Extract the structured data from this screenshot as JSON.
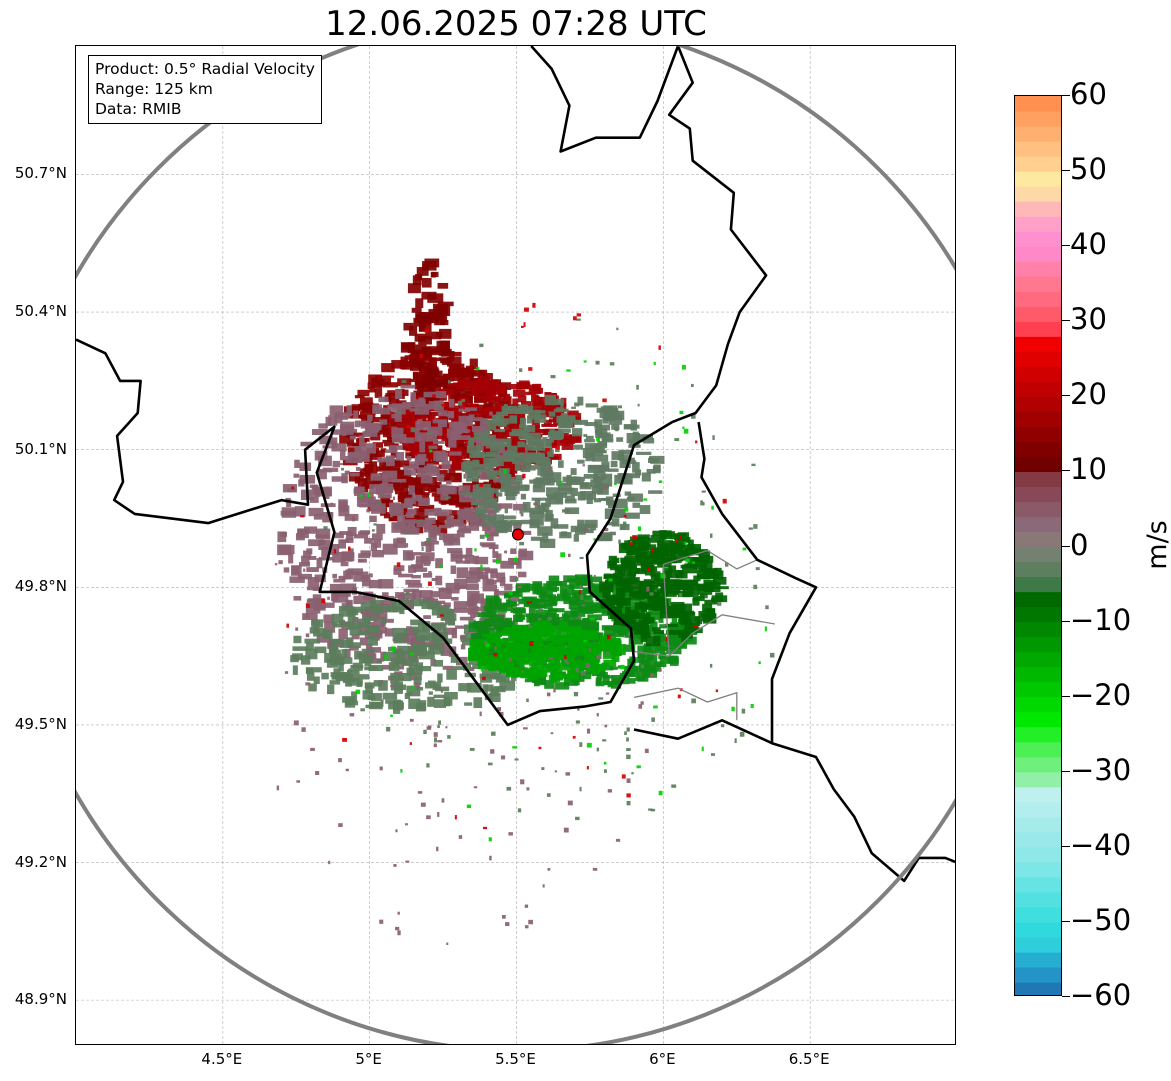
{
  "title": "12.06.2025 07:28 UTC",
  "info": {
    "product": "Product: 0.5° Radial Velocity",
    "range": "Range: 125 km",
    "data": "Data: RMIB"
  },
  "map": {
    "lon_min": 4.0,
    "lon_max": 7.0,
    "lat_min": 48.8,
    "lat_max": 50.98,
    "radar_site": {
      "lon": 5.505,
      "lat": 49.915
    },
    "range_ring": {
      "lon": 5.505,
      "lat": 49.915,
      "radius_lon_deg": 1.74,
      "radius_lat_deg": 1.125,
      "color": "#808080"
    },
    "lat_ticks": [
      {
        "value": 50.7,
        "label": "50.7°N"
      },
      {
        "value": 50.4,
        "label": "50.4°N"
      },
      {
        "value": 50.1,
        "label": "50.1°N"
      },
      {
        "value": 49.8,
        "label": "49.8°N"
      },
      {
        "value": 49.5,
        "label": "49.5°N"
      },
      {
        "value": 49.2,
        "label": "49.2°N"
      },
      {
        "value": 48.9,
        "label": "48.9°N"
      }
    ],
    "lon_ticks": [
      {
        "value": 4.5,
        "label": "4.5°E"
      },
      {
        "value": 5.0,
        "label": "5°E"
      },
      {
        "value": 5.5,
        "label": "5.5°E"
      },
      {
        "value": 6.0,
        "label": "6°E"
      },
      {
        "value": 6.5,
        "label": "6.5°E"
      }
    ],
    "borders": [
      [
        [
          4.0,
          50.34
        ],
        [
          4.1,
          50.31
        ],
        [
          4.15,
          50.25
        ],
        [
          4.22,
          50.25
        ],
        [
          4.21,
          50.18
        ],
        [
          4.14,
          50.13
        ],
        [
          4.16,
          50.03
        ],
        [
          4.13,
          49.99
        ],
        [
          4.2,
          49.96
        ],
        [
          4.45,
          49.94
        ],
        [
          4.55,
          49.96
        ],
        [
          4.7,
          49.99
        ],
        [
          4.79,
          49.98
        ],
        [
          4.78,
          50.1
        ],
        [
          4.88,
          50.15
        ],
        [
          4.82,
          50.05
        ],
        [
          4.88,
          49.92
        ],
        [
          4.83,
          49.79
        ],
        [
          4.95,
          49.79
        ],
        [
          5.1,
          49.77
        ],
        [
          5.25,
          49.69
        ],
        [
          5.47,
          49.5
        ],
        [
          5.58,
          49.53
        ],
        [
          5.73,
          49.54
        ],
        [
          5.82,
          49.55
        ],
        [
          5.9,
          49.64
        ],
        [
          5.89,
          49.71
        ],
        [
          5.75,
          49.79
        ],
        [
          5.74,
          49.87
        ],
        [
          5.82,
          49.95
        ],
        [
          5.9,
          50.11
        ],
        [
          6.03,
          50.16
        ],
        [
          6.11,
          50.18
        ],
        [
          6.18,
          50.24
        ],
        [
          6.22,
          50.33
        ],
        [
          6.26,
          50.4
        ],
        [
          6.35,
          50.48
        ],
        [
          6.23,
          50.58
        ],
        [
          6.24,
          50.66
        ],
        [
          6.1,
          50.73
        ],
        [
          6.09,
          50.8
        ],
        [
          6.02,
          50.83
        ],
        [
          6.1,
          50.9
        ],
        [
          6.05,
          50.98
        ]
      ],
      [
        [
          6.12,
          50.16
        ],
        [
          6.14,
          50.08
        ],
        [
          6.13,
          50.04
        ],
        [
          6.2,
          49.96
        ],
        [
          6.32,
          49.86
        ],
        [
          6.45,
          49.82
        ],
        [
          6.52,
          49.8
        ],
        [
          6.43,
          49.7
        ],
        [
          6.37,
          49.6
        ],
        [
          6.37,
          49.46
        ],
        [
          6.2,
          49.51
        ],
        [
          6.05,
          49.47
        ],
        [
          5.9,
          49.49
        ]
      ],
      [
        [
          6.37,
          49.46
        ],
        [
          6.52,
          49.43
        ],
        [
          6.58,
          49.36
        ],
        [
          6.65,
          49.3
        ],
        [
          6.71,
          49.22
        ],
        [
          6.82,
          49.16
        ],
        [
          6.87,
          49.21
        ],
        [
          6.96,
          49.21
        ],
        [
          7.0,
          49.2
        ]
      ],
      [
        [
          5.55,
          50.98
        ],
        [
          5.62,
          50.93
        ],
        [
          5.68,
          50.85
        ],
        [
          5.65,
          50.75
        ],
        [
          5.77,
          50.78
        ],
        [
          5.92,
          50.78
        ],
        [
          5.98,
          50.86
        ],
        [
          6.05,
          50.98
        ]
      ]
    ],
    "sub_borders": [
      [
        [
          6.0,
          49.85
        ],
        [
          6.15,
          49.88
        ],
        [
          6.25,
          49.84
        ],
        [
          6.32,
          49.86
        ]
      ],
      [
        [
          5.9,
          49.66
        ],
        [
          6.02,
          49.65
        ],
        [
          6.1,
          49.7
        ],
        [
          6.2,
          49.74
        ],
        [
          6.38,
          49.72
        ]
      ],
      [
        [
          5.9,
          49.56
        ],
        [
          6.05,
          49.58
        ],
        [
          6.15,
          49.55
        ],
        [
          6.25,
          49.57
        ],
        [
          6.25,
          49.51
        ]
      ],
      [
        [
          6.02,
          49.65
        ],
        [
          6.01,
          49.75
        ],
        [
          6.0,
          49.85
        ]
      ]
    ],
    "echo_regions": [
      {
        "kind": "receding_strong",
        "color": "#8b0000",
        "cx": 5.22,
        "cy": 50.12,
        "rx": 0.3,
        "ry": 0.2,
        "count": 520
      },
      {
        "kind": "receding",
        "color": "#a40005",
        "cx": 5.4,
        "cy": 50.15,
        "rx": 0.32,
        "ry": 0.1,
        "count": 280
      },
      {
        "kind": "receding_spike",
        "color": "#800000",
        "cx": 5.2,
        "cy": 50.35,
        "rx": 0.07,
        "ry": 0.16,
        "count": 80
      },
      {
        "kind": "near_zero_pos",
        "color": "#8a6070",
        "cx": 5.12,
        "cy": 49.92,
        "rx": 0.42,
        "ry": 0.32,
        "count": 600
      },
      {
        "kind": "near_zero_neg",
        "color": "#607a62",
        "cx": 5.65,
        "cy": 50.05,
        "rx": 0.34,
        "ry": 0.16,
        "count": 320
      },
      {
        "kind": "near_zero_neg",
        "color": "#5b7d5b",
        "cx": 5.15,
        "cy": 49.65,
        "rx": 0.42,
        "ry": 0.12,
        "count": 240
      },
      {
        "kind": "approaching",
        "color": "#0d8a14",
        "cx": 5.72,
        "cy": 49.7,
        "rx": 0.38,
        "ry": 0.12,
        "count": 500
      },
      {
        "kind": "approaching_strong",
        "color": "#006400",
        "cx": 6.0,
        "cy": 49.8,
        "rx": 0.2,
        "ry": 0.12,
        "count": 280
      },
      {
        "kind": "approaching_dense",
        "color": "#00a400",
        "cx": 5.6,
        "cy": 49.66,
        "rx": 0.25,
        "ry": 0.06,
        "count": 220
      },
      {
        "kind": "scatter",
        "color": "#8a6070",
        "cx": 5.3,
        "cy": 49.6,
        "rx": 0.7,
        "ry": 0.6,
        "count": 150
      },
      {
        "kind": "scatter",
        "color": "#5b7d5b",
        "cx": 5.6,
        "cy": 49.8,
        "rx": 0.8,
        "ry": 0.6,
        "count": 150
      },
      {
        "kind": "scatter",
        "color": "#d40000",
        "cx": 5.5,
        "cy": 49.85,
        "rx": 0.8,
        "ry": 0.6,
        "count": 60
      },
      {
        "kind": "scatter",
        "color": "#00d000",
        "cx": 5.6,
        "cy": 49.8,
        "rx": 0.8,
        "ry": 0.6,
        "count": 60
      }
    ],
    "colors": {
      "border": "#000000",
      "sub_border": "#808080",
      "grid": "#b0b0b0",
      "radar_marker": "#e60000"
    }
  },
  "colorbar": {
    "unit": "m/s",
    "min": -60,
    "max": 60,
    "ticks": [
      {
        "value": 60,
        "label": "60"
      },
      {
        "value": 50,
        "label": "50"
      },
      {
        "value": 40,
        "label": "40"
      },
      {
        "value": 30,
        "label": "30"
      },
      {
        "value": 20,
        "label": "20"
      },
      {
        "value": 10,
        "label": "10"
      },
      {
        "value": 0,
        "label": "0"
      },
      {
        "value": -10,
        "label": "−10"
      },
      {
        "value": -20,
        "label": "−20"
      },
      {
        "value": -30,
        "label": "−30"
      },
      {
        "value": -40,
        "label": "−40"
      },
      {
        "value": -50,
        "label": "−50"
      },
      {
        "value": -60,
        "label": "−60"
      }
    ],
    "bands": [
      {
        "from": -60,
        "to": -58,
        "color": "#1f77b4"
      },
      {
        "from": -58,
        "to": -56,
        "color": "#2494c8"
      },
      {
        "from": -56,
        "to": -54,
        "color": "#25aed2"
      },
      {
        "from": -54,
        "to": -52,
        "color": "#2ecfdb"
      },
      {
        "from": -52,
        "to": -50,
        "color": "#30d9de"
      },
      {
        "from": -50,
        "to": -48,
        "color": "#3fdedf"
      },
      {
        "from": -48,
        "to": -46,
        "color": "#52e0e0"
      },
      {
        "from": -46,
        "to": -44,
        "color": "#66e3e3"
      },
      {
        "from": -44,
        "to": -42,
        "color": "#7de6e6"
      },
      {
        "from": -42,
        "to": -40,
        "color": "#8ee8e8"
      },
      {
        "from": -40,
        "to": -38,
        "color": "#99e9ea"
      },
      {
        "from": -38,
        "to": -36,
        "color": "#a6ebeb"
      },
      {
        "from": -36,
        "to": -34,
        "color": "#b2eeee"
      },
      {
        "from": -34,
        "to": -32,
        "color": "#bff0f0"
      },
      {
        "from": -32,
        "to": -30,
        "color": "#90f0a8"
      },
      {
        "from": -30,
        "to": -28,
        "color": "#6ff07c"
      },
      {
        "from": -28,
        "to": -26,
        "color": "#4cf054"
      },
      {
        "from": -26,
        "to": -24,
        "color": "#22f026"
      },
      {
        "from": -24,
        "to": -22,
        "color": "#00e800"
      },
      {
        "from": -22,
        "to": -20,
        "color": "#00d800"
      },
      {
        "from": -20,
        "to": -18,
        "color": "#00c800"
      },
      {
        "from": -18,
        "to": -16,
        "color": "#00b800"
      },
      {
        "from": -16,
        "to": -14,
        "color": "#00a800"
      },
      {
        "from": -14,
        "to": -12,
        "color": "#009800"
      },
      {
        "from": -12,
        "to": -10,
        "color": "#008800"
      },
      {
        "from": -10,
        "to": -8,
        "color": "#007800"
      },
      {
        "from": -8,
        "to": -6,
        "color": "#006a00"
      },
      {
        "from": -6,
        "to": -4,
        "color": "#3e7a48"
      },
      {
        "from": -4,
        "to": -2,
        "color": "#5e7e60"
      },
      {
        "from": -2,
        "to": 0,
        "color": "#748070"
      },
      {
        "from": 0,
        "to": 2,
        "color": "#8a7878"
      },
      {
        "from": 2,
        "to": 4,
        "color": "#8a6a78"
      },
      {
        "from": 4,
        "to": 6,
        "color": "#8a5a68"
      },
      {
        "from": 6,
        "to": 8,
        "color": "#884858"
      },
      {
        "from": 8,
        "to": 10,
        "color": "#843a44"
      },
      {
        "from": 10,
        "to": 12,
        "color": "#700000"
      },
      {
        "from": 12,
        "to": 14,
        "color": "#800000"
      },
      {
        "from": 14,
        "to": 16,
        "color": "#900000"
      },
      {
        "from": 16,
        "to": 18,
        "color": "#a00000"
      },
      {
        "from": 18,
        "to": 20,
        "color": "#b00000"
      },
      {
        "from": 20,
        "to": 22,
        "color": "#c00000"
      },
      {
        "from": 22,
        "to": 24,
        "color": "#d00000"
      },
      {
        "from": 24,
        "to": 26,
        "color": "#e00000"
      },
      {
        "from": 26,
        "to": 28,
        "color": "#f00000"
      },
      {
        "from": 28,
        "to": 30,
        "color": "#ff4050"
      },
      {
        "from": 30,
        "to": 32,
        "color": "#ff5a6a"
      },
      {
        "from": 32,
        "to": 34,
        "color": "#ff6a80"
      },
      {
        "from": 34,
        "to": 36,
        "color": "#ff7890"
      },
      {
        "from": 36,
        "to": 38,
        "color": "#ff80a8"
      },
      {
        "from": 38,
        "to": 40,
        "color": "#ff88c8"
      },
      {
        "from": 40,
        "to": 42,
        "color": "#ff90d0"
      },
      {
        "from": 42,
        "to": 44,
        "color": "#ffa0c8"
      },
      {
        "from": 44,
        "to": 46,
        "color": "#ffb8b8"
      },
      {
        "from": 46,
        "to": 48,
        "color": "#ffd8a8"
      },
      {
        "from": 48,
        "to": 50,
        "color": "#ffe8a0"
      },
      {
        "from": 50,
        "to": 52,
        "color": "#ffd090"
      },
      {
        "from": 52,
        "to": 54,
        "color": "#ffc080"
      },
      {
        "from": 54,
        "to": 56,
        "color": "#ffb070"
      },
      {
        "from": 56,
        "to": 58,
        "color": "#ffa060"
      },
      {
        "from": 58,
        "to": 60,
        "color": "#ff9050"
      }
    ]
  }
}
